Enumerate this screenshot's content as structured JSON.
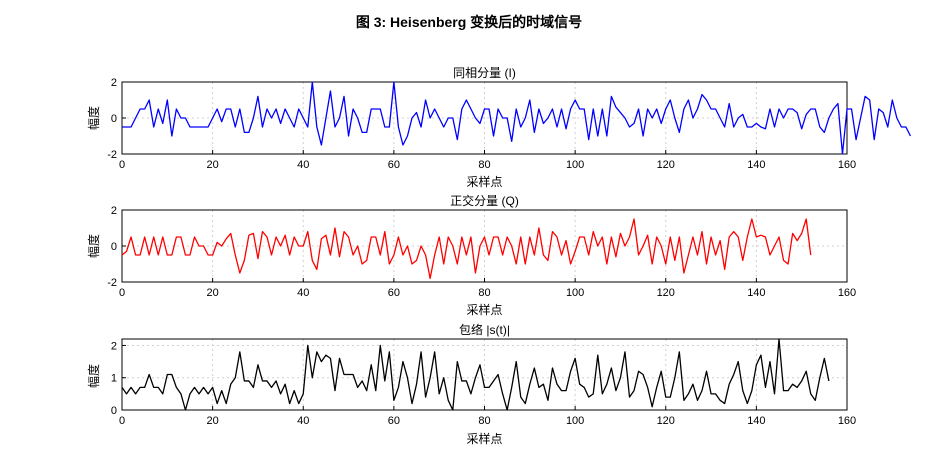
{
  "figure": {
    "title": "图 3: Heisenberg 变换后的时域信号"
  },
  "chart_data": [
    {
      "type": "line",
      "title": "同相分量 (I)",
      "xlabel": "采样点",
      "ylabel": "幅度",
      "xlim": [
        0,
        160
      ],
      "ylim": [
        -2,
        2
      ],
      "xticks": [
        0,
        20,
        40,
        60,
        80,
        100,
        120,
        140,
        160
      ],
      "yticks": [
        -2,
        0,
        2
      ],
      "grid": true,
      "color": "#0000ff",
      "series": [
        {
          "values": [
            -0.5,
            -0.5,
            -0.5,
            0,
            0.5,
            0.5,
            1,
            -0.5,
            0.5,
            -0.3,
            1,
            -1,
            0.5,
            0,
            0,
            -0.5,
            -0.5,
            -0.5,
            -0.5,
            -0.5,
            0,
            0.5,
            -0.2,
            0.5,
            0.5,
            -0.5,
            0.5,
            -0.8,
            -0.8,
            0,
            1.2,
            -0.5,
            0.5,
            0,
            0.5,
            -0.3,
            0.5,
            0,
            -0.5,
            0.5,
            0,
            -0.5,
            2,
            -0.5,
            -1.5,
            0,
            1.5,
            -0.5,
            0,
            1.2,
            -1,
            0.5,
            0,
            -0.8,
            -0.8,
            0.5,
            0.5,
            0.5,
            -0.5,
            -0.5,
            2,
            -0.5,
            -1.5,
            -1,
            0,
            0.3,
            -0.5,
            1,
            0,
            0.5,
            0,
            -0.5,
            0,
            0,
            -1.2,
            0.5,
            1,
            0.5,
            0,
            -0.3,
            0.5,
            0.5,
            -1,
            0.5,
            0,
            0,
            -1.3,
            0.5,
            -0.5,
            0,
            1,
            -0.8,
            0.5,
            -0.3,
            0,
            0.5,
            -0.5,
            0.5,
            -0.6,
            0.5,
            1,
            0.5,
            0.5,
            -1.2,
            0.5,
            -1,
            0.5,
            -1,
            1.2,
            0.6,
            0.3,
            0,
            -0.5,
            -0.3,
            0.5,
            -1,
            0.5,
            0,
            0.5,
            -0.3,
            0.5,
            1,
            0,
            -0.8,
            0.5,
            1,
            0,
            0.5,
            1.3,
            1,
            0.5,
            0.5,
            0,
            -0.5,
            0.8,
            -0.5,
            0,
            0.2,
            -0.5,
            -0.5,
            -0.3,
            -0.5,
            -0.6,
            0.5,
            -0.5,
            0.5,
            0,
            0.5,
            0.5,
            0.3,
            -0.6,
            0.2,
            0.5,
            0.5,
            -0.5,
            -0.8,
            0,
            0.5,
            0.8,
            -2,
            0.5,
            0.5,
            -1.2,
            0,
            1.2,
            1,
            -1.2,
            0.5,
            0.3,
            -0.5,
            1,
            0,
            -0.5,
            -0.5,
            -1
          ]
        }
      ]
    },
    {
      "type": "line",
      "title": "正交分量 (Q)",
      "xlabel": "采样点",
      "ylabel": "幅度",
      "xlim": [
        0,
        160
      ],
      "ylim": [
        -2,
        2
      ],
      "xticks": [
        0,
        20,
        40,
        60,
        80,
        100,
        120,
        140,
        160
      ],
      "yticks": [
        -2,
        0,
        2
      ],
      "grid": true,
      "color": "#ff0000",
      "series": [
        {
          "values": [
            -0.5,
            -0.3,
            0.5,
            -0.5,
            -0.5,
            0.5,
            -0.5,
            0.5,
            -0.5,
            0.5,
            -0.5,
            -0.5,
            0.5,
            0.5,
            -0.5,
            -0.5,
            0.5,
            0,
            0,
            -0.5,
            -0.5,
            0.2,
            0,
            0.4,
            0.7,
            -0.5,
            -1.5,
            -0.8,
            0.6,
            0.7,
            -0.7,
            0.8,
            0.5,
            -0.5,
            0.5,
            0,
            0.6,
            -0.5,
            0.5,
            0,
            0,
            0.8,
            -0.8,
            -1.3,
            0.4,
            0.6,
            -0.5,
            1,
            -0.6,
            0.8,
            0.5,
            -0.5,
            0,
            -1,
            -0.8,
            0.5,
            0.5,
            -0.5,
            0.8,
            -1,
            -0.5,
            0.5,
            -0.5,
            0,
            -1,
            -0.8,
            0,
            -0.5,
            -1.8,
            -0.5,
            0.5,
            -1,
            0.5,
            0,
            -1,
            0.5,
            -0.5,
            0.5,
            -1.5,
            0,
            0.5,
            -0.5,
            0.5,
            0.5,
            -0.5,
            0.5,
            0,
            -1,
            0.5,
            -1,
            0.5,
            -0.5,
            1,
            -0.5,
            -0.8,
            0.8,
            0.5,
            -0.5,
            0.3,
            -1,
            -0.3,
            0.5,
            0.5,
            -0.5,
            0.8,
            0,
            0.5,
            -1,
            0.5,
            -0.6,
            0.7,
            0,
            0.5,
            1.5,
            -0.5,
            0,
            0.6,
            -1,
            0.5,
            0,
            -1,
            0.5,
            -0.8,
            0.5,
            -1.5,
            -0.5,
            0.5,
            -0.5,
            0.8,
            -1,
            0.5,
            -0.5,
            0.3,
            -1.3,
            0.5,
            0.8,
            0.5,
            -0.8,
            0.5,
            1.5,
            0.5,
            0.6,
            0.5,
            -0.5,
            0,
            0.5,
            -0.8,
            -1,
            0.7,
            0.3,
            0.7,
            1.5,
            -0.5
          ]
        }
      ]
    },
    {
      "type": "line",
      "title": "包络 |s(t)|",
      "xlabel": "采样点",
      "ylabel": "幅度",
      "xlim": [
        0,
        160
      ],
      "ylim": [
        0,
        2.2
      ],
      "xticks": [
        0,
        20,
        40,
        60,
        80,
        100,
        120,
        140,
        160
      ],
      "yticks": [
        0,
        1,
        2
      ],
      "grid": true,
      "color": "#000000",
      "series": [
        {
          "values": [
            0.7,
            0.5,
            0.7,
            0.5,
            0.7,
            0.7,
            1.1,
            0.7,
            0.7,
            0.5,
            1.1,
            1.1,
            0.7,
            0.5,
            0,
            0.5,
            0.7,
            0.5,
            0.7,
            0.5,
            0.7,
            0.2,
            0.6,
            0.2,
            0.8,
            1,
            1.8,
            0.9,
            0.9,
            0.7,
            1.4,
            0.9,
            0.9,
            0.7,
            0.9,
            0.5,
            0.8,
            0.2,
            0.6,
            0.2,
            0.5,
            2,
            1,
            1.8,
            1.5,
            1.7,
            1.6,
            0.6,
            1.6,
            1.1,
            1.1,
            1.1,
            0.7,
            0.9,
            0.6,
            1.4,
            0.6,
            2,
            0.9,
            1.8,
            0.3,
            0.7,
            1.5,
            1,
            0.2,
            0.8,
            1.8,
            0.4,
            1,
            1.8,
            0.5,
            1,
            0.3,
            0,
            1.5,
            0.9,
            0.9,
            0.5,
            1,
            1.4,
            0.7,
            0.7,
            0.9,
            1.1,
            0.5,
            0,
            0.7,
            1.5,
            0.4,
            0.2,
            0.8,
            1.3,
            0.7,
            0.8,
            0.3,
            1.3,
            0.8,
            0.6,
            0.6,
            1.2,
            1.6,
            0.8,
            0.7,
            0.4,
            0.5,
            1.7,
            0.5,
            0.8,
            1.3,
            0.6,
            1,
            1.8,
            0.4,
            0.6,
            1.2,
            1.1,
            0.7,
            0.1,
            0.7,
            1.2,
            0.4,
            0.4,
            1,
            1.8,
            0.3,
            0.5,
            0.8,
            0.3,
            0.6,
            1.2,
            0.5,
            0.5,
            0.3,
            0.2,
            0.8,
            1.1,
            1.5,
            0.6,
            0.2,
            0.6,
            1.4,
            1.7,
            0.7,
            1.5,
            0.5,
            2.2,
            0.6,
            0.6,
            0.8,
            0.7,
            0.9,
            1.2,
            0.5,
            0.3,
            1,
            1.6,
            0.9
          ]
        }
      ]
    }
  ]
}
